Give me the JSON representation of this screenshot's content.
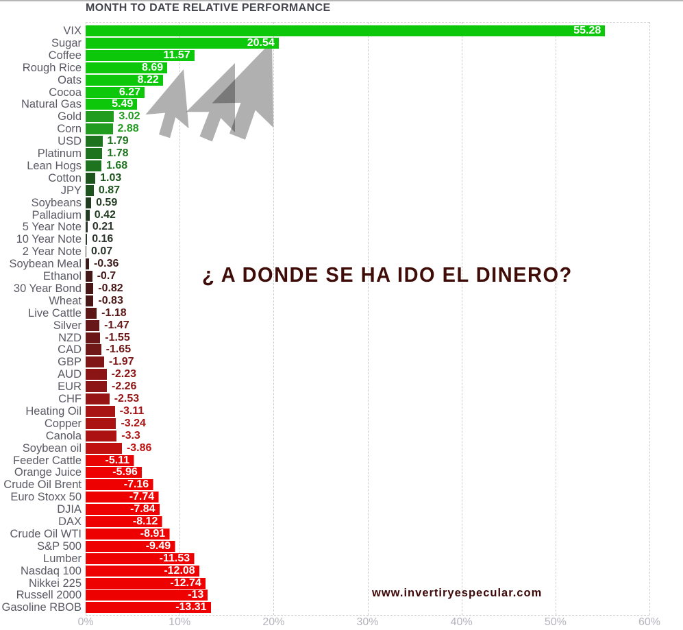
{
  "header": {
    "title": "MONTH TO DATE RELATIVE PERFORMANCE"
  },
  "overlay": {
    "question": "¿ A DONDE SE HA IDO EL DINERO?",
    "watermark": "www.invertiryespecular.com",
    "cursor_icons": {
      "name": "mouse-cursor-arrow-icon",
      "count": 3,
      "color": "#b0b0b0"
    }
  },
  "colors": {
    "background": "#ffffff",
    "top_border": "#b6b6b6",
    "title_text": "#45454e",
    "category_text": "#595963",
    "axis_text": "#b4b4bc",
    "grid": "#cccccc",
    "inside_label_text": "#ffffff",
    "question_text": "#3f0c08",
    "watermark_text": "#3c0606",
    "arrow_gray": "#b0b0b0",
    "positive_bright": "#0dc70b",
    "negative_bright": "#ee0101"
  },
  "chart_data": {
    "type": "bar",
    "orientation": "horizontal",
    "title": "MONTH TO DATE RELATIVE PERFORMANCE",
    "xlabel": "",
    "ylabel": "",
    "xlim": [
      0,
      60
    ],
    "x_tick_values": [
      0,
      10,
      20,
      30,
      40,
      50,
      60
    ],
    "x_tick_labels": [
      "0%",
      "10%",
      "20%",
      "30%",
      "40%",
      "50%",
      "60%"
    ],
    "grid": "dashed-vertical",
    "legend": "none",
    "categories": [
      "VIX",
      "Sugar",
      "Coffee",
      "Rough Rice",
      "Oats",
      "Cocoa",
      "Natural Gas",
      "Gold",
      "Corn",
      "USD",
      "Platinum",
      "Lean Hogs",
      "Cotton",
      "JPY",
      "Soybeans",
      "Palladium",
      "5 Year Note",
      "10 Year Note",
      "2 Year Note",
      "Soybean Meal",
      "Ethanol",
      "30 Year Bond",
      "Wheat",
      "Live Cattle",
      "Silver",
      "NZD",
      "CAD",
      "GBP",
      "AUD",
      "EUR",
      "CHF",
      "Heating Oil",
      "Copper",
      "Canola",
      "Soybean oil",
      "Feeder Cattle",
      "Orange Juice",
      "Crude Oil Brent",
      "Euro Stoxx 50",
      "DJIA",
      "DAX",
      "Crude Oil WTI",
      "S&P 500",
      "Lumber",
      "Nasdaq 100",
      "Nikkei 225",
      "Russell 2000",
      "Gasoline RBOB"
    ],
    "values": [
      55.28,
      20.54,
      11.57,
      8.69,
      8.22,
      6.27,
      5.49,
      3.02,
      2.88,
      1.79,
      1.78,
      1.68,
      1.03,
      0.87,
      0.59,
      0.42,
      0.21,
      0.16,
      0.07,
      -0.36,
      -0.7,
      -0.82,
      -0.83,
      -1.18,
      -1.47,
      -1.55,
      -1.65,
      -1.97,
      -2.23,
      -2.26,
      -2.53,
      -3.11,
      -3.24,
      -3.3,
      -3.86,
      -5.11,
      -5.96,
      -7.16,
      -7.74,
      -7.84,
      -8.12,
      -8.91,
      -9.49,
      -11.53,
      -12.08,
      -12.74,
      -13,
      -13.31
    ],
    "value_labels": [
      "55.28",
      "20.54",
      "11.57",
      "8.69",
      "8.22",
      "6.27",
      "5.49",
      "3.02",
      "2.88",
      "1.79",
      "1.78",
      "1.68",
      "1.03",
      "0.87",
      "0.59",
      "0.42",
      "0.21",
      "0.16",
      "0.07",
      "-0.36",
      "-0.7",
      "-0.82",
      "-0.83",
      "-1.18",
      "-1.47",
      "-1.55",
      "-1.65",
      "-1.97",
      "-2.23",
      "-2.26",
      "-2.53",
      "-3.11",
      "-3.24",
      "-3.3",
      "-3.86",
      "-5.11",
      "-5.96",
      "-7.16",
      "-7.74",
      "-7.84",
      "-8.12",
      "-8.91",
      "-9.49",
      "-11.53",
      "-12.08",
      "-12.74",
      "-13",
      "-13.31"
    ],
    "bar_colors": [
      "#0dc70b",
      "#0dc70b",
      "#0dc70b",
      "#0dc70b",
      "#0dc70b",
      "#0dc70b",
      "#0dc70b",
      "#219c1e",
      "#219c1e",
      "#1e741e",
      "#1e741e",
      "#1e741e",
      "#1d531d",
      "#1d531d",
      "#223c22",
      "#223c22",
      "#2b352c",
      "#2b352c",
      "#2b352c",
      "#3c1a1a",
      "#451818",
      "#4a1717",
      "#4a1717",
      "#5c1616",
      "#671717",
      "#6b1717",
      "#701717",
      "#801616",
      "#8b1515",
      "#8c1515",
      "#961414",
      "#a81313",
      "#ab1313",
      "#ad1212",
      "#c11010",
      "#e90404",
      "#ee0202",
      "#ee0101",
      "#ee0101",
      "#ee0101",
      "#ee0101",
      "#ee0101",
      "#ee0101",
      "#ee0101",
      "#ee0101",
      "#ee0101",
      "#ee0101",
      "#ee0101"
    ]
  }
}
